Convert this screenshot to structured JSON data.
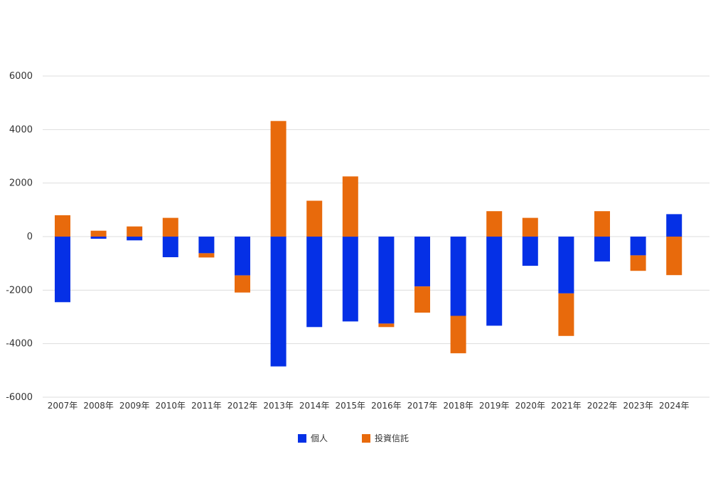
{
  "chart_data": {
    "type": "bar",
    "stacked": true,
    "categories": [
      "2007年",
      "2008年",
      "2009年",
      "2010年",
      "2011年",
      "2012年",
      "2013年",
      "2014年",
      "2015年",
      "2016年",
      "2017年",
      "2018年",
      "2019年",
      "2020年",
      "2021年",
      "2022年",
      "2023年",
      "2024年"
    ],
    "series": [
      {
        "name": "個人",
        "color": "#0530e6",
        "values": [
          -2450,
          -80,
          -140,
          -770,
          -620,
          -1450,
          -4850,
          -3380,
          -3170,
          -3250,
          -1860,
          -2960,
          -3330,
          -1090,
          -2120,
          -930,
          -700,
          840
        ]
      },
      {
        "name": "投資信託",
        "color": "#e86a0c",
        "values": [
          800,
          220,
          380,
          700,
          -160,
          -640,
          4320,
          1340,
          2250,
          -130,
          -980,
          -1400,
          950,
          700,
          -1590,
          950,
          -580,
          -1440
        ]
      }
    ],
    "ylim": [
      -6000,
      6000
    ],
    "yticks": [
      6000,
      4000,
      2000,
      0,
      -2000,
      -4000,
      -6000
    ],
    "grid": true,
    "legend_position": "bottom-center"
  }
}
